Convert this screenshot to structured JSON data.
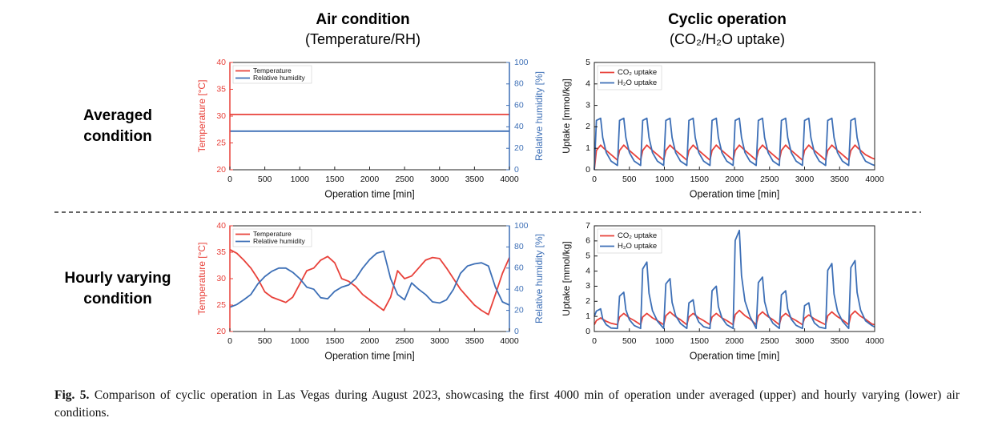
{
  "column_titles": [
    {
      "title": "Air condition",
      "subtitle": "(Temperature/RH)"
    },
    {
      "title": "Cyclic operation",
      "subtitle": "(CO₂/H₂O uptake)"
    }
  ],
  "row_labels": [
    [
      "Averaged",
      "condition"
    ],
    [
      "Hourly varying",
      "condition"
    ]
  ],
  "caption": {
    "label": "Fig. 5.",
    "text": "Comparison of cyclic operation in Las Vegas during August 2023, showcasing the first 4000 min of operation under averaged (upper) and hourly varying (lower) air conditions."
  },
  "chart_data": [
    {
      "type": "line",
      "xlabel": "Operation time [min]",
      "ylabel": "Temperature [°C]",
      "y2label": "Relative humidity [%]",
      "xlim": [
        0,
        4000
      ],
      "xticks": [
        0,
        500,
        1000,
        1500,
        2000,
        2500,
        3000,
        3500,
        4000
      ],
      "ylim": [
        20,
        40
      ],
      "yticks": [
        20,
        25,
        30,
        35,
        40
      ],
      "y2lim": [
        0,
        100
      ],
      "y2ticks": [
        0,
        20,
        40,
        60,
        80,
        100
      ],
      "legend": "upper left",
      "x": [
        0,
        4000
      ],
      "series": [
        {
          "name": "Temperature",
          "color": "#e8413a",
          "values": [
            30.3,
            30.3
          ]
        },
        {
          "name": "Relative humidity",
          "color": "#3d6fb6",
          "axis": "y2",
          "values": [
            36,
            36
          ]
        }
      ]
    },
    {
      "type": "line",
      "xlabel": "Operation time [min]",
      "ylabel": "Uptake [mmol/kg]",
      "xlim": [
        0,
        4000
      ],
      "xticks": [
        0,
        500,
        1000,
        1500,
        2000,
        2500,
        3000,
        3500,
        4000
      ],
      "ylim": [
        0,
        5
      ],
      "yticks": [
        0,
        1,
        2,
        3,
        4,
        5
      ],
      "legend": "upper left",
      "x": [
        0,
        30,
        90,
        120,
        170,
        240,
        330,
        360,
        420,
        450,
        500,
        570,
        660,
        690,
        750,
        780,
        830,
        900,
        990,
        1020,
        1080,
        1110,
        1160,
        1230,
        1320,
        1350,
        1410,
        1440,
        1490,
        1560,
        1650,
        1680,
        1740,
        1770,
        1820,
        1890,
        1980,
        2010,
        2070,
        2100,
        2150,
        2220,
        2310,
        2340,
        2400,
        2430,
        2480,
        2550,
        2640,
        2670,
        2730,
        2760,
        2810,
        2880,
        2970,
        3000,
        3060,
        3090,
        3140,
        3210,
        3300,
        3330,
        3390,
        3420,
        3470,
        3540,
        3630,
        3660,
        3720,
        3750,
        3800,
        3870,
        3960,
        4000
      ],
      "series": [
        {
          "name": "CO₂ uptake",
          "color": "#e8413a",
          "values": [
            0,
            0.9,
            1.15,
            1.05,
            0.9,
            0.7,
            0.45,
            0.9,
            1.15,
            1.05,
            0.9,
            0.7,
            0.45,
            0.9,
            1.15,
            1.05,
            0.9,
            0.7,
            0.45,
            0.9,
            1.15,
            1.05,
            0.9,
            0.7,
            0.45,
            0.9,
            1.15,
            1.05,
            0.9,
            0.7,
            0.45,
            0.9,
            1.15,
            1.05,
            0.9,
            0.7,
            0.45,
            0.9,
            1.15,
            1.05,
            0.9,
            0.7,
            0.45,
            0.9,
            1.15,
            1.05,
            0.9,
            0.7,
            0.45,
            0.9,
            1.15,
            1.05,
            0.9,
            0.7,
            0.45,
            0.9,
            1.15,
            1.05,
            0.9,
            0.7,
            0.45,
            0.9,
            1.15,
            1.05,
            0.9,
            0.7,
            0.45,
            0.9,
            1.15,
            1.05,
            0.9,
            0.7,
            0.55,
            0.5
          ]
        },
        {
          "name": "H₂O uptake",
          "color": "#3d6fb6",
          "values": [
            0,
            2.3,
            2.4,
            1.5,
            0.8,
            0.4,
            0.2,
            2.3,
            2.4,
            1.5,
            0.8,
            0.4,
            0.2,
            2.3,
            2.4,
            1.5,
            0.8,
            0.4,
            0.2,
            2.3,
            2.4,
            1.5,
            0.8,
            0.4,
            0.2,
            2.3,
            2.4,
            1.5,
            0.8,
            0.4,
            0.2,
            2.3,
            2.4,
            1.5,
            0.8,
            0.4,
            0.2,
            2.3,
            2.4,
            1.5,
            0.8,
            0.4,
            0.2,
            2.3,
            2.4,
            1.5,
            0.8,
            0.4,
            0.2,
            2.3,
            2.4,
            1.5,
            0.8,
            0.4,
            0.2,
            2.3,
            2.4,
            1.5,
            0.8,
            0.4,
            0.2,
            2.3,
            2.4,
            1.5,
            0.8,
            0.4,
            0.2,
            2.3,
            2.4,
            1.5,
            0.8,
            0.4,
            0.25,
            0.2
          ]
        }
      ]
    },
    {
      "type": "line",
      "xlabel": "Operation time [min]",
      "ylabel": "Temperature [°C]",
      "y2label": "Relative humidity [%]",
      "xlim": [
        0,
        4000
      ],
      "xticks": [
        0,
        500,
        1000,
        1500,
        2000,
        2500,
        3000,
        3500,
        4000
      ],
      "ylim": [
        20,
        40
      ],
      "yticks": [
        20,
        25,
        30,
        35,
        40
      ],
      "y2lim": [
        0,
        100
      ],
      "y2ticks": [
        0,
        20,
        40,
        60,
        80,
        100
      ],
      "legend": "upper left",
      "x": [
        0,
        100,
        200,
        300,
        400,
        500,
        600,
        700,
        800,
        900,
        1000,
        1100,
        1200,
        1300,
        1400,
        1500,
        1600,
        1700,
        1800,
        1900,
        2000,
        2100,
        2200,
        2300,
        2400,
        2500,
        2600,
        2700,
        2800,
        2900,
        3000,
        3100,
        3200,
        3300,
        3400,
        3500,
        3600,
        3700,
        3800,
        3900,
        4000
      ],
      "series": [
        {
          "name": "Temperature",
          "color": "#e8413a",
          "values": [
            35.5,
            34.8,
            33.5,
            32,
            30,
            27.5,
            26.5,
            26,
            25.5,
            26.5,
            29,
            31.5,
            32,
            33.5,
            34.2,
            33,
            30,
            29.5,
            28.5,
            27,
            26,
            25,
            24,
            26.5,
            31.5,
            30,
            30.5,
            32,
            33.5,
            34,
            33.8,
            32,
            30,
            28,
            26.5,
            25,
            24,
            23.2,
            27,
            31,
            34
          ]
        },
        {
          "name": "Relative humidity",
          "color": "#3d6fb6",
          "axis": "y2",
          "values": [
            23,
            25.5,
            30,
            35,
            45,
            52,
            57,
            60,
            60,
            56,
            50,
            42,
            40,
            32,
            31,
            38,
            42,
            44,
            50,
            60,
            68,
            74,
            76,
            50,
            35,
            30,
            46,
            40,
            35,
            28,
            27,
            30,
            40,
            55,
            62,
            64,
            65,
            62,
            42,
            28,
            25
          ]
        }
      ]
    },
    {
      "type": "line",
      "xlabel": "Operation time [min]",
      "ylabel": "Uptake [mmol/kg]",
      "xlim": [
        0,
        4000
      ],
      "xticks": [
        0,
        500,
        1000,
        1500,
        2000,
        2500,
        3000,
        3500,
        4000
      ],
      "ylim": [
        0,
        7
      ],
      "yticks": [
        0,
        1,
        2,
        3,
        4,
        5,
        6,
        7
      ],
      "legend": "upper left",
      "x": [
        0,
        30,
        90,
        120,
        170,
        240,
        330,
        360,
        420,
        450,
        500,
        570,
        660,
        690,
        750,
        780,
        830,
        900,
        990,
        1020,
        1080,
        1110,
        1160,
        1230,
        1320,
        1350,
        1410,
        1440,
        1490,
        1560,
        1650,
        1680,
        1740,
        1770,
        1820,
        1890,
        1980,
        2010,
        2070,
        2100,
        2150,
        2220,
        2310,
        2340,
        2400,
        2430,
        2480,
        2550,
        2640,
        2670,
        2730,
        2760,
        2810,
        2880,
        2970,
        3000,
        3060,
        3090,
        3140,
        3210,
        3300,
        3330,
        3390,
        3420,
        3470,
        3540,
        3630,
        3660,
        3720,
        3750,
        3800,
        3870,
        3960,
        4000
      ],
      "series": [
        {
          "name": "CO₂ uptake",
          "color": "#e8413a",
          "values": [
            0.45,
            0.72,
            0.9,
            0.81,
            0.68,
            0.54,
            0.45,
            0.96,
            1.2,
            1.08,
            0.9,
            0.72,
            0.45,
            0.96,
            1.2,
            1.08,
            0.9,
            0.72,
            0.45,
            1.04,
            1.3,
            1.17,
            0.98,
            0.78,
            0.45,
            0.96,
            1.2,
            1.08,
            0.9,
            0.72,
            0.45,
            0.96,
            1.2,
            1.08,
            0.9,
            0.72,
            0.45,
            1.12,
            1.4,
            1.26,
            1.05,
            0.84,
            0.45,
            1.04,
            1.3,
            1.17,
            0.98,
            0.78,
            0.45,
            0.96,
            1.2,
            1.08,
            0.9,
            0.72,
            0.45,
            0.88,
            1.1,
            0.99,
            0.83,
            0.66,
            0.45,
            1.04,
            1.3,
            1.17,
            0.98,
            0.78,
            0.45,
            1.08,
            1.35,
            1.22,
            1.01,
            0.81,
            0.5,
            0.45
          ]
        },
        {
          "name": "H₂O uptake",
          "color": "#3d6fb6",
          "values": [
            1.0,
            1.35,
            1.5,
            0.83,
            0.45,
            0.23,
            0.2,
            2.34,
            2.6,
            1.43,
            0.78,
            0.39,
            0.2,
            4.14,
            4.6,
            2.53,
            1.38,
            0.69,
            0.2,
            3.15,
            3.5,
            1.93,
            1.05,
            0.53,
            0.2,
            1.89,
            2.1,
            1.16,
            0.63,
            0.32,
            0.2,
            2.7,
            3.0,
            1.65,
            0.9,
            0.45,
            0.2,
            6.03,
            6.7,
            3.69,
            2.01,
            1.01,
            0.2,
            3.24,
            3.6,
            1.98,
            1.08,
            0.54,
            0.2,
            2.43,
            2.7,
            1.49,
            0.81,
            0.41,
            0.2,
            1.71,
            1.9,
            1.05,
            0.57,
            0.29,
            0.2,
            4.05,
            4.5,
            2.48,
            1.35,
            0.68,
            0.2,
            4.23,
            4.7,
            2.59,
            1.41,
            0.71,
            0.4,
            0.3
          ]
        }
      ]
    }
  ]
}
